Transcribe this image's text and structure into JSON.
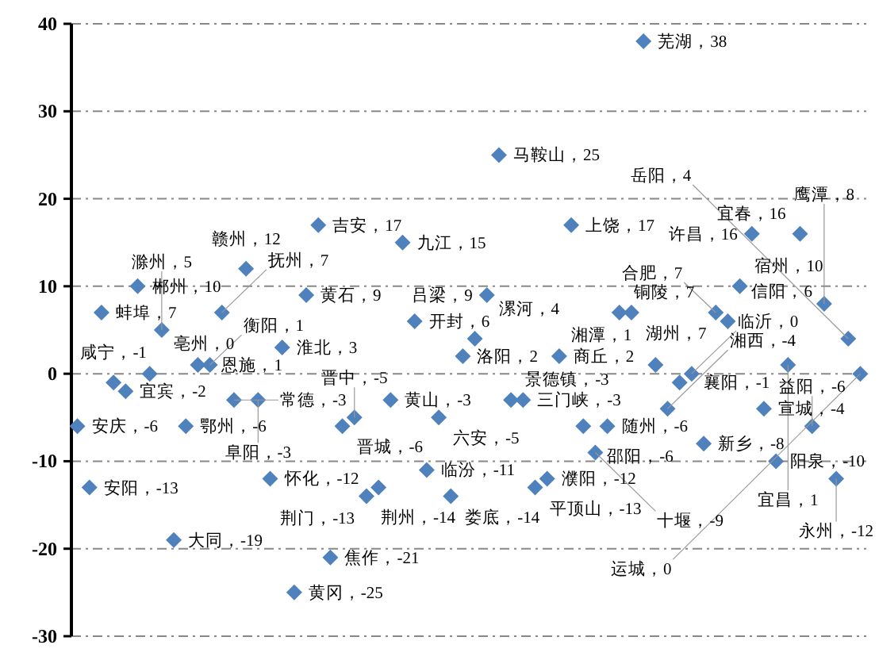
{
  "chart_data": {
    "type": "scatter",
    "marker": "diamond",
    "color": "#4f81bd",
    "grid": "y",
    "ylim": [
      -30,
      40
    ],
    "yticks": [
      -30,
      -20,
      -10,
      0,
      10,
      20,
      30,
      40
    ],
    "categories": [
      null,
      null,
      null,
      null,
      null,
      null,
      null,
      null,
      null,
      null,
      null,
      null,
      null,
      null,
      null,
      null,
      null,
      null,
      null,
      null,
      null,
      null,
      null,
      null,
      null,
      null,
      null,
      null,
      null,
      null,
      null,
      null,
      null,
      null,
      null,
      null,
      null,
      null,
      null,
      null,
      null,
      null,
      null,
      null,
      null,
      null,
      null,
      null,
      null,
      null,
      null,
      null,
      null,
      null,
      null,
      null,
      null,
      null,
      null,
      null,
      null,
      null,
      null,
      null,
      null,
      null
    ],
    "values": [
      -6,
      -13,
      7,
      -1,
      -2,
      10,
      0,
      5,
      -19,
      -6,
      1,
      1,
      7,
      -3,
      12,
      -3,
      -12,
      3,
      -25,
      9,
      17,
      -21,
      -6,
      -5,
      -14,
      -13,
      -3,
      15,
      6,
      -11,
      -5,
      -14,
      2,
      4,
      9,
      25,
      -3,
      -3,
      -13,
      -12,
      2,
      17,
      -6,
      -9,
      -6,
      7,
      7,
      38,
      1,
      -4,
      -1,
      0,
      -8,
      7,
      6,
      10,
      16,
      -4,
      -10,
      1,
      16,
      -6,
      8,
      -12,
      4,
      0
    ],
    "value_labels": [
      "安庆，-6",
      "安阳，-13",
      "蚌埠，7",
      "咸宁，-1",
      "宜宾，-2",
      "郴州，10",
      "亳州，0",
      "滁州，5",
      "大同，-19",
      "鄂州，-6",
      "恩施，1",
      "衡阳，1",
      "抚州，7",
      "常德，-3",
      "赣州，12",
      "阜阳，-3",
      "怀化，-12",
      "淮北，3",
      "黄冈，-25",
      "黄石，9",
      "吉安，17",
      "焦作，-21",
      "晋城，-6",
      "晋中，-5",
      "荆州，-14",
      "荆门，-13",
      "黄山，-3",
      "九江，15",
      "开封，6",
      "临汾，-11",
      "六安，-5",
      "娄底，-14",
      "洛阳，2",
      "漯河，4",
      "吕梁，9",
      "马鞍山，25",
      "景德镇，-3",
      "三门峡，-3",
      "平顶山，-13",
      "濮阳，-12",
      "商丘，2",
      "上饶，17",
      "邵阳，-6",
      "十堰，-9",
      "随州，-6",
      "铜陵，7",
      "湖州，7",
      "芜湖，38",
      "湘潭，1",
      "湘西，-4",
      "襄阳，-1",
      "临沂，0",
      "新乡，-8",
      "合肥，7",
      "信阳，6",
      "宿州，10",
      "许昌，16",
      "宣城，-4",
      "阳泉，-10",
      "宜昌，1",
      "宜春，16",
      "益阳，-6",
      "鹰潭，8",
      "永州，-12",
      "岳阳，4",
      "运城，0"
    ]
  }
}
